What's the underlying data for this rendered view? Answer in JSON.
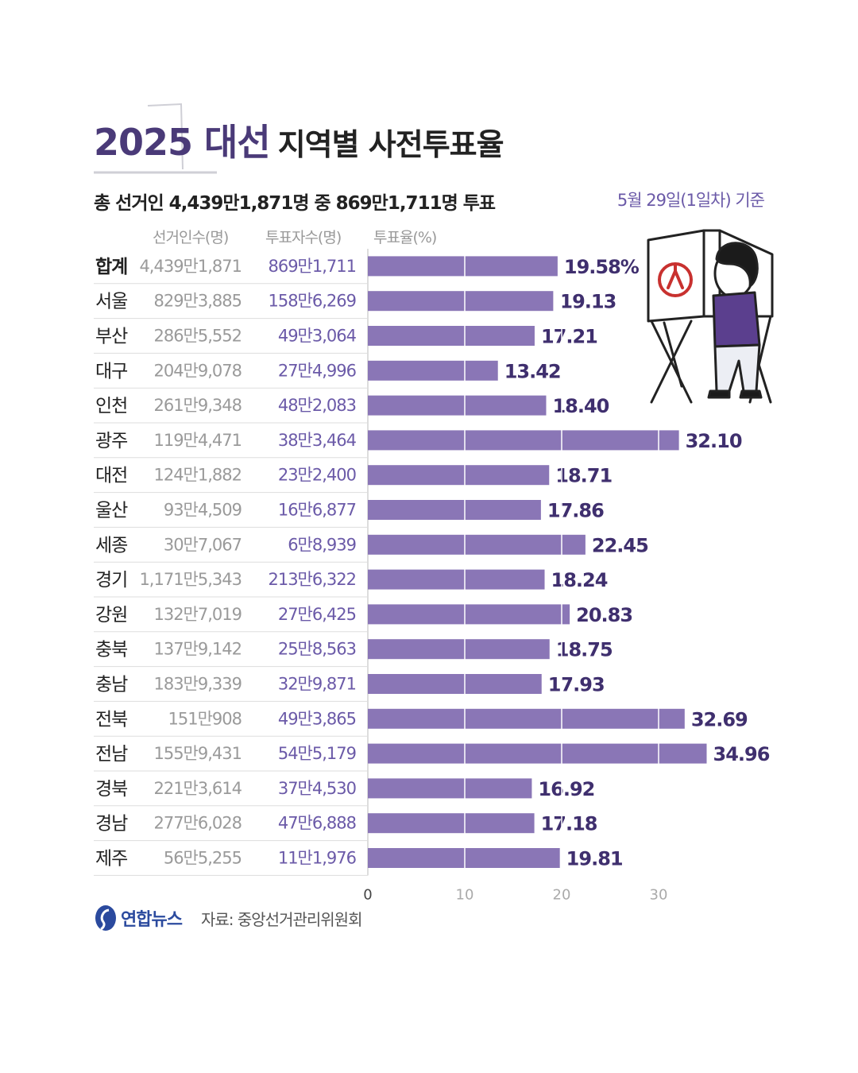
{
  "title": {
    "year": "2025 대선",
    "rest": "지역별 사전투표율"
  },
  "subtitle": "총 선거인 4,439만1,871명 중 869만1,711명 투표",
  "basis": "5월 29일(1일차) 기준",
  "columns": {
    "electors": "선거인수(명)",
    "voters": "투표자수(명)",
    "rate": "투표율(%)"
  },
  "colors": {
    "bar": "#8a76b6",
    "accent": "#4a3a78",
    "value": "#3f2f6e",
    "muted": "#999999"
  },
  "rows": [
    {
      "region": "합계",
      "electors": "4,439만1,871",
      "voters": "869만1,711",
      "label": "19.58%"
    },
    {
      "region": "서울",
      "electors": "829만3,885",
      "voters": "158만6,269",
      "label": "19.13"
    },
    {
      "region": "부산",
      "electors": "286만5,552",
      "voters": "49만3,064",
      "label": "17.21"
    },
    {
      "region": "대구",
      "electors": "204만9,078",
      "voters": "27만4,996",
      "label": "13.42"
    },
    {
      "region": "인천",
      "electors": "261만9,348",
      "voters": "48만2,083",
      "label": "18.40"
    },
    {
      "region": "광주",
      "electors": "119만4,471",
      "voters": "38만3,464",
      "label": "32.10"
    },
    {
      "region": "대전",
      "electors": "124만1,882",
      "voters": "23만2,400",
      "label": "18.71"
    },
    {
      "region": "울산",
      "electors": "93만4,509",
      "voters": "16만6,877",
      "label": "17.86"
    },
    {
      "region": "세종",
      "electors": "30만7,067",
      "voters": "6만8,939",
      "label": "22.45"
    },
    {
      "region": "경기",
      "electors": "1,171만5,343",
      "voters": "213만6,322",
      "label": "18.24"
    },
    {
      "region": "강원",
      "electors": "132만7,019",
      "voters": "27만6,425",
      "label": "20.83"
    },
    {
      "region": "충북",
      "electors": "137만9,142",
      "voters": "25만8,563",
      "label": "18.75"
    },
    {
      "region": "충남",
      "electors": "183만9,339",
      "voters": "32만9,871",
      "label": "17.93"
    },
    {
      "region": "전북",
      "electors": "151만908",
      "voters": "49만3,865",
      "label": "32.69"
    },
    {
      "region": "전남",
      "electors": "155만9,431",
      "voters": "54만5,179",
      "label": "34.96"
    },
    {
      "region": "경북",
      "electors": "221만3,614",
      "voters": "37만4,530",
      "label": "16.92"
    },
    {
      "region": "경남",
      "electors": "277만6,028",
      "voters": "47만6,888",
      "label": "17.18"
    },
    {
      "region": "제주",
      "electors": "56만5,255",
      "voters": "11만1,976",
      "label": "19.81"
    }
  ],
  "chart_data": {
    "type": "bar",
    "orientation": "horizontal",
    "title": "2025 대선 지역별 사전투표율",
    "xlabel": "투표율(%)",
    "categories": [
      "합계",
      "서울",
      "부산",
      "대구",
      "인천",
      "광주",
      "대전",
      "울산",
      "세종",
      "경기",
      "강원",
      "충북",
      "충남",
      "전북",
      "전남",
      "경북",
      "경남",
      "제주"
    ],
    "values": [
      19.58,
      19.13,
      17.21,
      13.42,
      18.4,
      32.1,
      18.71,
      17.86,
      22.45,
      18.24,
      20.83,
      18.75,
      17.93,
      32.69,
      34.96,
      16.92,
      17.18,
      19.81
    ],
    "xlim": [
      0,
      35
    ],
    "ticks": [
      "0",
      "10",
      "20",
      "30"
    ],
    "grid": true
  },
  "footer": {
    "logo": "연합뉴스",
    "source": "자료: 중앙선거관리위원회"
  }
}
